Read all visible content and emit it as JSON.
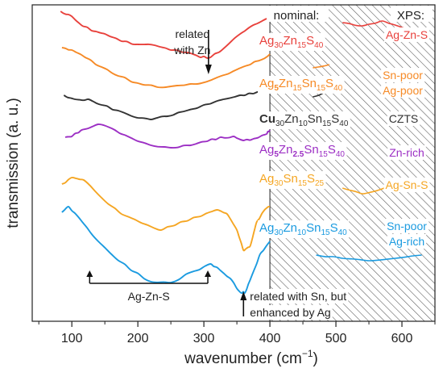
{
  "chart_data": {
    "type": "line",
    "xlabel": "wavenumber (cm",
    "xlabel_sup": "−1",
    "xlabel_tail": ")",
    "ylabel": "transmission (a. u.)",
    "xlim": [
      40,
      650
    ],
    "xticks": [
      100,
      200,
      300,
      400,
      500,
      600
    ],
    "xminor": [
      50,
      150,
      250,
      350,
      450,
      550,
      650
    ],
    "header_nominal": "nominal:",
    "header_xps": "XPS:",
    "hatched_from_x": 400,
    "series": [
      {
        "label_parts": [
          [
            "Ag",
            ""
          ],
          [
            "30",
            "s"
          ],
          [
            "Zn",
            ""
          ],
          [
            "15",
            "s"
          ],
          [
            "S",
            ""
          ],
          [
            "40",
            "s"
          ]
        ],
        "xps": [
          "Ag-Zn-S"
        ],
        "color": "#e8413c",
        "points": [
          [
            83,
            -6
          ],
          [
            95,
            -2
          ],
          [
            110,
            8
          ],
          [
            130,
            18
          ],
          [
            150,
            22
          ],
          [
            175,
            31
          ],
          [
            200,
            35
          ],
          [
            225,
            36
          ],
          [
            250,
            42
          ],
          [
            275,
            45
          ],
          [
            295,
            51
          ],
          [
            310,
            51
          ],
          [
            330,
            40
          ],
          [
            355,
            22
          ],
          [
            375,
            11
          ],
          [
            395,
            3
          ]
        ],
        "tail": [
          [
            510,
            8
          ],
          [
            540,
            12
          ],
          [
            570,
            6
          ],
          [
            600,
            14
          ],
          [
            630,
            25
          ]
        ]
      },
      {
        "label_parts": [
          [
            "Ag",
            ""
          ],
          [
            "5",
            "s"
          ],
          [
            "Zn",
            ""
          ],
          [
            "15",
            "s"
          ],
          [
            "Sn",
            ""
          ],
          [
            "15",
            "s"
          ],
          [
            "S",
            ""
          ],
          [
            "40",
            "s"
          ]
        ],
        "xps": [
          "Sn-poor",
          "Ag-poor"
        ],
        "color": "#f68a26",
        "points": [
          [
            85,
            39
          ],
          [
            100,
            42
          ],
          [
            120,
            51
          ],
          [
            145,
            63
          ],
          [
            170,
            74
          ],
          [
            200,
            83
          ],
          [
            230,
            88
          ],
          [
            260,
            86
          ],
          [
            290,
            84
          ],
          [
            320,
            76
          ],
          [
            345,
            68
          ],
          [
            370,
            60
          ],
          [
            390,
            53
          ],
          [
            400,
            47
          ]
        ],
        "tail": [
          [
            465,
            64
          ],
          [
            490,
            60
          ]
        ]
      },
      {
        "label_parts": [
          [
            "Cu",
            ""
          ],
          [
            "30",
            "s"
          ],
          [
            "Zn",
            ""
          ],
          [
            "10",
            "s"
          ],
          [
            "Sn",
            ""
          ],
          [
            "15",
            "s"
          ],
          [
            "S",
            ""
          ],
          [
            "40",
            "s"
          ]
        ],
        "xps": [
          "CZTS"
        ],
        "color": "#333333",
        "points": [
          [
            88,
            98
          ],
          [
            105,
            103
          ],
          [
            125,
            103
          ],
          [
            145,
            110
          ],
          [
            170,
            117
          ],
          [
            200,
            126
          ],
          [
            220,
            128
          ],
          [
            245,
            124
          ],
          [
            270,
            118
          ],
          [
            300,
            110
          ],
          [
            330,
            103
          ],
          [
            355,
            98
          ],
          [
            375,
            96
          ],
          [
            395,
            93
          ],
          [
            400,
            92
          ]
        ],
        "tail": [
          [
            465,
            100
          ],
          [
            490,
            92
          ]
        ]
      },
      {
        "label_parts": [
          [
            "Ag",
            ""
          ],
          [
            "5",
            "s"
          ],
          [
            "Zn",
            ""
          ],
          [
            "2.5",
            "s"
          ],
          [
            "Sn",
            ""
          ],
          [
            "15",
            "s"
          ],
          [
            "S",
            ""
          ],
          [
            "40",
            "s"
          ]
        ],
        "xps": [
          "Zn-rich"
        ],
        "color": "#9c2fc4",
        "points": [
          [
            90,
            150
          ],
          [
            100,
            149
          ],
          [
            115,
            141
          ],
          [
            140,
            134
          ],
          [
            165,
            141
          ],
          [
            190,
            151
          ],
          [
            220,
            160
          ],
          [
            250,
            163
          ],
          [
            280,
            160
          ],
          [
            305,
            155
          ],
          [
            325,
            150
          ],
          [
            345,
            149
          ],
          [
            360,
            154
          ],
          [
            375,
            152
          ],
          [
            395,
            146
          ],
          [
            400,
            141
          ]
        ],
        "tail": [
          [
            455,
            170
          ],
          [
            480,
            164
          ]
        ]
      },
      {
        "label_parts": [
          [
            "Ag",
            ""
          ],
          [
            "30",
            "s"
          ],
          [
            "Sn",
            ""
          ],
          [
            "15",
            "s"
          ],
          [
            "S",
            ""
          ],
          [
            "25",
            "s"
          ]
        ],
        "xps": [
          "Ag-Sn-S"
        ],
        "color": "#f5a623",
        "points": [
          [
            85,
            208
          ],
          [
            100,
            200
          ],
          [
            118,
            203
          ],
          [
            145,
            225
          ],
          [
            175,
            245
          ],
          [
            205,
            256
          ],
          [
            235,
            265
          ],
          [
            265,
            255
          ],
          [
            295,
            248
          ],
          [
            320,
            240
          ],
          [
            335,
            245
          ],
          [
            350,
            265
          ],
          [
            360,
            290
          ],
          [
            370,
            285
          ],
          [
            380,
            255
          ],
          [
            392,
            240
          ],
          [
            400,
            236
          ]
        ],
        "tail": [
          [
            510,
            213
          ],
          [
            540,
            220
          ],
          [
            570,
            214
          ],
          [
            600,
            206
          ],
          [
            630,
            205
          ]
        ]
      },
      {
        "label_parts": [
          [
            "Ag",
            ""
          ],
          [
            "30",
            "s"
          ],
          [
            "Zn",
            ""
          ],
          [
            "10",
            "s"
          ],
          [
            "Sn",
            ""
          ],
          [
            "15",
            "s"
          ],
          [
            "S",
            ""
          ],
          [
            "40",
            "s"
          ]
        ],
        "xps": [
          "Sn-poor",
          "Ag-rich"
        ],
        "color": "#1b9be0",
        "points": [
          [
            85,
            243
          ],
          [
            95,
            236
          ],
          [
            110,
            249
          ],
          [
            130,
            270
          ],
          [
            160,
            295
          ],
          [
            190,
            315
          ],
          [
            220,
            329
          ],
          [
            250,
            330
          ],
          [
            285,
            316
          ],
          [
            310,
            307
          ],
          [
            325,
            315
          ],
          [
            340,
            325
          ],
          [
            355,
            342
          ],
          [
            362,
            343
          ],
          [
            370,
            327
          ],
          [
            385,
            295
          ],
          [
            400,
            279
          ]
        ],
        "tail": [
          [
            470,
            296
          ],
          [
            510,
            300
          ],
          [
            550,
            303
          ],
          [
            590,
            300
          ],
          [
            630,
            296
          ]
        ]
      }
    ],
    "annotations": {
      "zn_text_1": "related",
      "zn_text_2": "with Zn",
      "zn_arrow_x": 307,
      "ags_label": "Ag-Zn-S",
      "ags_x1": 127,
      "ags_x2": 306,
      "sn_text_1": "related with Sn, but",
      "sn_text_2": "enhanced by Ag",
      "sn_arrow_x": 360
    }
  }
}
